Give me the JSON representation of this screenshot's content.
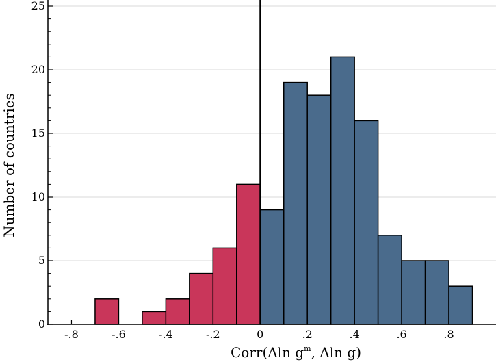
{
  "chart_data": {
    "type": "bar",
    "xlabel_parts": [
      "Corr(Δln g",
      "m",
      ", Δln g)"
    ],
    "ylabel": "Number of countries",
    "xlim": [
      -0.9,
      1.0
    ],
    "ylim": [
      0,
      25
    ],
    "xticks": [
      -0.8,
      -0.6,
      -0.4,
      -0.2,
      0,
      0.2,
      0.4,
      0.6,
      0.8
    ],
    "xtick_labels": [
      "-.8",
      "-.6",
      "-.4",
      "-.2",
      "0",
      ".2",
      ".4",
      ".6",
      ".8"
    ],
    "yticks": [
      0,
      5,
      10,
      15,
      20,
      25
    ],
    "ytick_labels": [
      "0",
      "5",
      "10",
      "15",
      "20",
      "25"
    ],
    "bin_width": 0.1,
    "reference_line_x": 0,
    "grid": "horizontal",
    "colors": {
      "negative": "#c9365a",
      "positive": "#4a6b8c",
      "edge": "#000000",
      "grid": "#d9d9d9"
    },
    "bins": [
      {
        "start": -0.7,
        "count": 2,
        "group": "negative"
      },
      {
        "start": -0.5,
        "count": 1,
        "group": "negative"
      },
      {
        "start": -0.4,
        "count": 2,
        "group": "negative"
      },
      {
        "start": -0.3,
        "count": 4,
        "group": "negative"
      },
      {
        "start": -0.2,
        "count": 6,
        "group": "negative"
      },
      {
        "start": -0.1,
        "count": 11,
        "group": "negative"
      },
      {
        "start": 0.0,
        "count": 9,
        "group": "positive"
      },
      {
        "start": 0.1,
        "count": 19,
        "group": "positive"
      },
      {
        "start": 0.2,
        "count": 18,
        "group": "positive"
      },
      {
        "start": 0.3,
        "count": 21,
        "group": "positive"
      },
      {
        "start": 0.4,
        "count": 16,
        "group": "positive"
      },
      {
        "start": 0.5,
        "count": 7,
        "group": "positive"
      },
      {
        "start": 0.6,
        "count": 5,
        "group": "positive"
      },
      {
        "start": 0.7,
        "count": 5,
        "group": "positive"
      },
      {
        "start": 0.8,
        "count": 3,
        "group": "positive"
      }
    ]
  }
}
